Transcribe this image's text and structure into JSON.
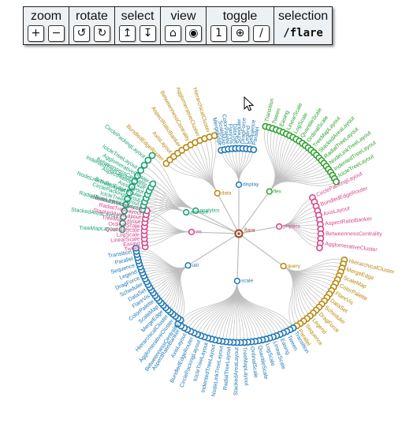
{
  "toolbar": {
    "zoom": {
      "title": "zoom",
      "buttons": [
        "+",
        "−"
      ]
    },
    "rotate": {
      "title": "rotate",
      "buttons": [
        "↺",
        "↻"
      ]
    },
    "select": {
      "title": "select",
      "buttons": [
        "↥",
        "↧"
      ]
    },
    "view": {
      "title": "view",
      "buttons": [
        "⌂",
        "◉"
      ]
    },
    "toggle": {
      "title": "toggle",
      "buttons": [
        "1",
        "⊕",
        "/"
      ]
    },
    "selection": {
      "title": "selection",
      "path": "/flare"
    }
  },
  "tree": {
    "root_label": "flare",
    "inner_labels": [
      "analytics",
      "data",
      "display",
      "flex",
      "physics",
      "query",
      "scale",
      "util",
      "vis",
      "animate"
    ],
    "leaf_labels": [
      "TreeMapLayout",
      "StackedAreaLayout",
      "RadialTreeLayout",
      "NodeLinkTreeLayout",
      "IndentedTreeLayout",
      "IcicleTreeLayout",
      "CirclePackingLayout",
      "BundledEdgeRouter",
      "AxisLayout",
      "AspectRatioBanker",
      "BetweennessCentrality",
      "AgglomerativeCluster",
      "HierarchicalCluster",
      "MergeEdge",
      "ScaleMap",
      "ColorPalette",
      "FlareVis",
      "DataSet",
      "Scheduler",
      "DragForce",
      "Legend",
      "Sequence",
      "Parallel",
      "Transition",
      "Tween",
      "Easing",
      "LinearScale",
      "LogScale",
      "QuantileScale",
      "OrdinalScale"
    ],
    "colors": {
      "edge": "#bdbdbd",
      "root": "#a0522d",
      "blue": "#1f77b4",
      "green": "#2ca02c",
      "teal": "#17a074",
      "pink": "#d6458a",
      "olive": "#b8860b",
      "gold": "#9c7a1e"
    }
  }
}
